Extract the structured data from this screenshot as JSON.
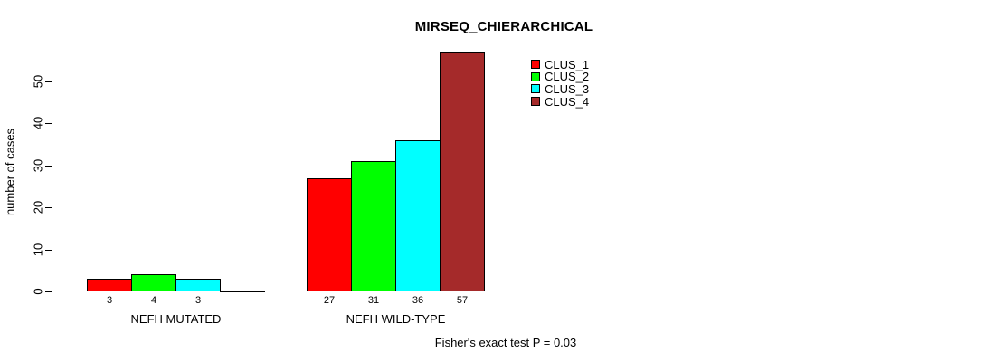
{
  "chart_data": {
    "type": "bar",
    "title": "MIRSEQ_CHIERARCHICAL",
    "ylabel": "number of cases",
    "xlabel": "",
    "ylim": [
      0,
      50
    ],
    "yticks": [
      0,
      10,
      20,
      30,
      40,
      50
    ],
    "grid": false,
    "categories": [
      "NEFH MUTATED",
      "NEFH WILD-TYPE"
    ],
    "series": [
      {
        "name": "CLUS_1",
        "color": "#FF0000",
        "values": [
          3,
          27
        ]
      },
      {
        "name": "CLUS_2",
        "color": "#00FF00",
        "values": [
          4,
          31
        ]
      },
      {
        "name": "CLUS_3",
        "color": "#00FFFF",
        "values": [
          3,
          36
        ]
      },
      {
        "name": "CLUS_4",
        "color": "#A52A2A",
        "values": [
          0,
          57
        ]
      }
    ],
    "bar_value_labels": [
      [
        "3",
        "4",
        "3",
        ""
      ],
      [
        "27",
        "31",
        "36",
        "57"
      ]
    ],
    "legend_position": "top-right",
    "legend_entries": [
      "CLUS_1",
      "CLUS_2",
      "CLUS_3",
      "CLUS_4"
    ],
    "annotation": "Fisher's exact test P = 0.03"
  }
}
